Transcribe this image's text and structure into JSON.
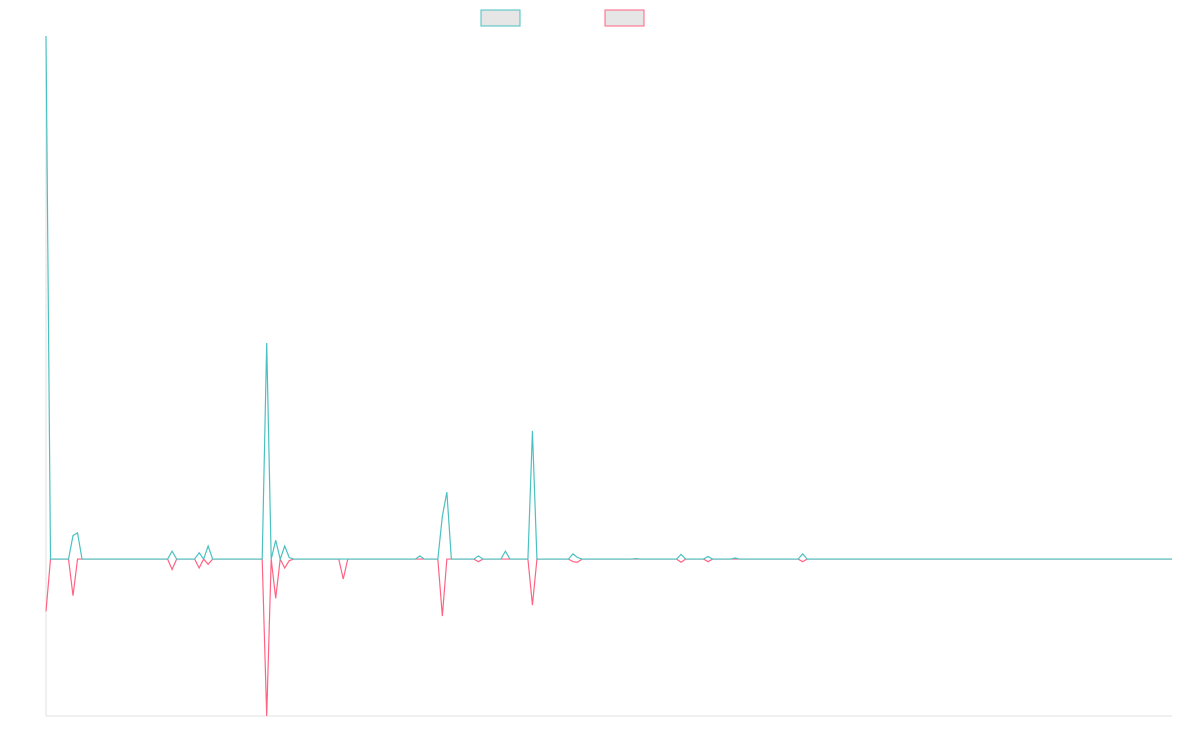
{
  "chart_data": {
    "type": "line",
    "x": [
      0,
      1,
      5,
      6,
      7,
      8,
      27,
      28,
      29,
      33,
      34,
      35,
      36,
      37,
      48,
      49,
      50,
      51,
      52,
      53,
      54,
      55,
      65,
      66,
      67,
      82,
      83,
      84,
      87,
      88,
      89,
      90,
      95,
      96,
      97,
      101,
      102,
      103,
      107,
      108,
      109,
      116,
      117,
      118,
      119,
      130,
      131,
      132,
      140,
      141,
      142,
      146,
      147,
      148,
      152,
      153,
      154,
      167,
      168,
      169,
      250
    ],
    "xlim": [
      0,
      250
    ],
    "ylim": [
      -30,
      100
    ],
    "legend": "top",
    "series": [
      {
        "color": "#4bc0c0",
        "values": [
          100,
          0,
          0,
          4.5,
          5,
          0,
          0,
          1.5,
          0,
          0,
          1.2,
          0,
          2.5,
          0,
          0,
          41.3,
          0,
          3.6,
          0,
          2.5,
          0.3,
          0,
          0,
          0,
          0,
          0,
          0.6,
          0,
          0,
          8.2,
          12.8,
          0,
          0,
          0.6,
          0,
          0,
          1.5,
          0,
          0,
          24.5,
          0,
          0,
          1,
          0.3,
          0,
          0,
          0.1,
          0,
          0,
          0.9,
          0,
          0,
          0.5,
          0,
          0,
          0.2,
          0,
          0,
          1,
          0,
          0
        ]
      },
      {
        "color": "#ff6384",
        "values": [
          -10,
          0,
          0,
          -7,
          0,
          0,
          0,
          -2,
          0,
          0,
          -1.7,
          0,
          -1,
          0,
          0,
          -30,
          0,
          -7.5,
          0,
          -1.7,
          -0.3,
          0,
          0,
          -3.8,
          0,
          0,
          0,
          0,
          0,
          -10.9,
          0,
          0,
          0,
          -0.5,
          0,
          0,
          0,
          0,
          0,
          -8.8,
          0,
          0,
          -0.5,
          -0.6,
          0,
          0,
          0,
          0,
          0,
          -0.6,
          0,
          0,
          -0.5,
          0,
          0,
          0,
          0,
          0,
          -0.5,
          0,
          0
        ]
      }
    ]
  }
}
